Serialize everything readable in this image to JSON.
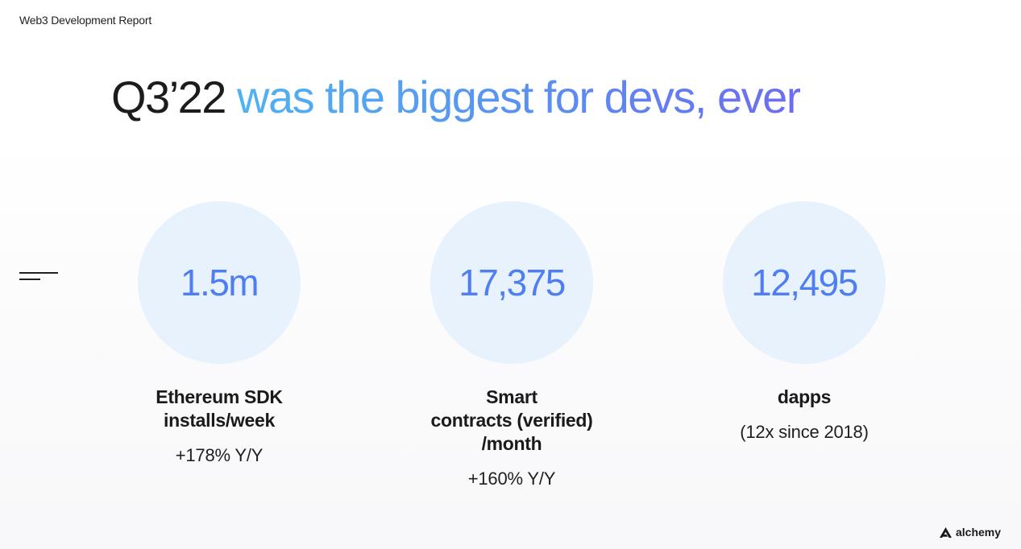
{
  "header": {
    "report_label": "Web3 Development Report"
  },
  "headline": {
    "lead": "Q3’22",
    "accent": "was the biggest for devs, ever"
  },
  "stats": [
    {
      "value": "1.5m",
      "label_lines": [
        "Ethereum SDK",
        "installs/week"
      ],
      "sub": "+178% Y/Y"
    },
    {
      "value": "17,375",
      "label_lines": [
        "Smart",
        "contracts (verified)",
        "/month"
      ],
      "sub": "+160% Y/Y"
    },
    {
      "value": "12,495",
      "label_lines": [
        "dapps"
      ],
      "sub": "(12x since 2018)"
    }
  ],
  "brand": {
    "name": "alchemy",
    "icon": "alchemy-logo-icon"
  },
  "colors": {
    "accent_start": "#4fb3f0",
    "accent_end": "#6d6cf0",
    "stat_value": "#4f7ef2",
    "circle_fill": "#e7f2fd"
  }
}
